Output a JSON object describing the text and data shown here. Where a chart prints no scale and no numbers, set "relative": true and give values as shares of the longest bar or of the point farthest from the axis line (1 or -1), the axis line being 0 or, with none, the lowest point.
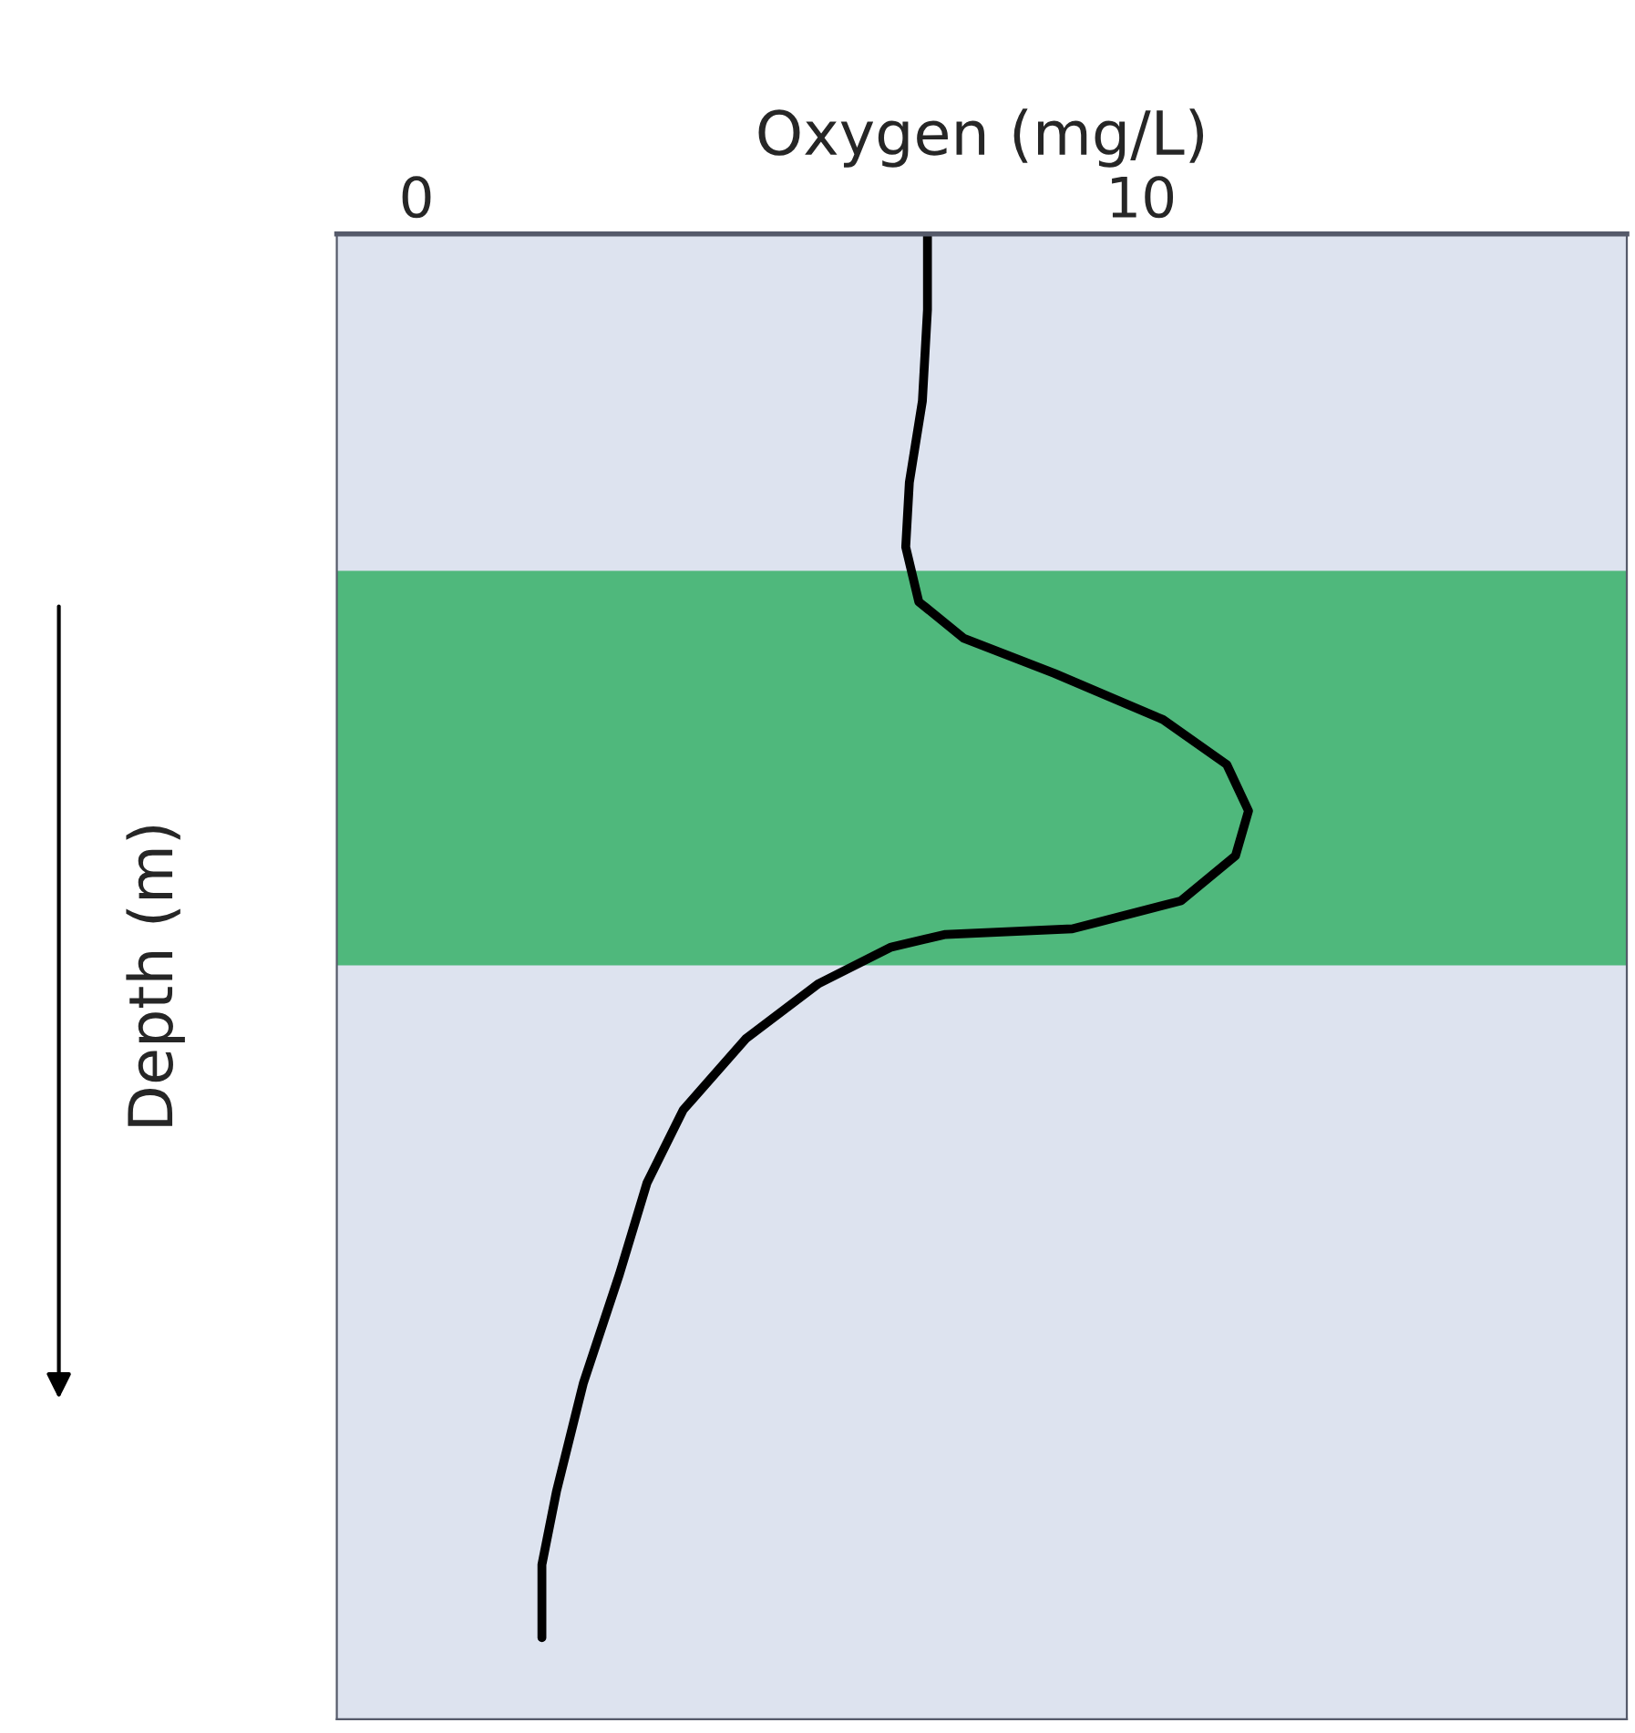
{
  "chart_data": {
    "type": "line",
    "relative": true,
    "xlabel": "Oxygen (mg/L)",
    "ylabel": "Depth (m)",
    "xlim": [
      -1.1,
      16.7
    ],
    "xticks": [
      0,
      10
    ],
    "tick_labels": "x",
    "grid": false,
    "legend": false,
    "marker": "none",
    "line_style": "solid",
    "series": [
      {
        "color": "#000000",
        "x": [
          7.05,
          7.05,
          6.98,
          6.8,
          6.75,
          6.93,
          7.55,
          8.8,
          10.3,
          11.18,
          11.48,
          11.3,
          10.55,
          9.05,
          7.3,
          6.55,
          5.55,
          4.55,
          3.68,
          3.18,
          2.8,
          2.3,
          1.93,
          1.73,
          1.73
        ],
        "values": [
          0,
          -0.054,
          -0.119,
          -0.177,
          -0.223,
          -0.262,
          -0.288,
          -0.313,
          -0.346,
          -0.378,
          -0.411,
          -0.443,
          -0.475,
          -0.495,
          -0.499,
          -0.508,
          -0.534,
          -0.573,
          -0.624,
          -0.676,
          -0.741,
          -0.819,
          -0.896,
          -0.948,
          -1
        ]
      }
    ],
    "bands": [
      {
        "axis": "y",
        "from": -0.24,
        "to": -0.521,
        "color": "#1faa55"
      }
    ]
  }
}
